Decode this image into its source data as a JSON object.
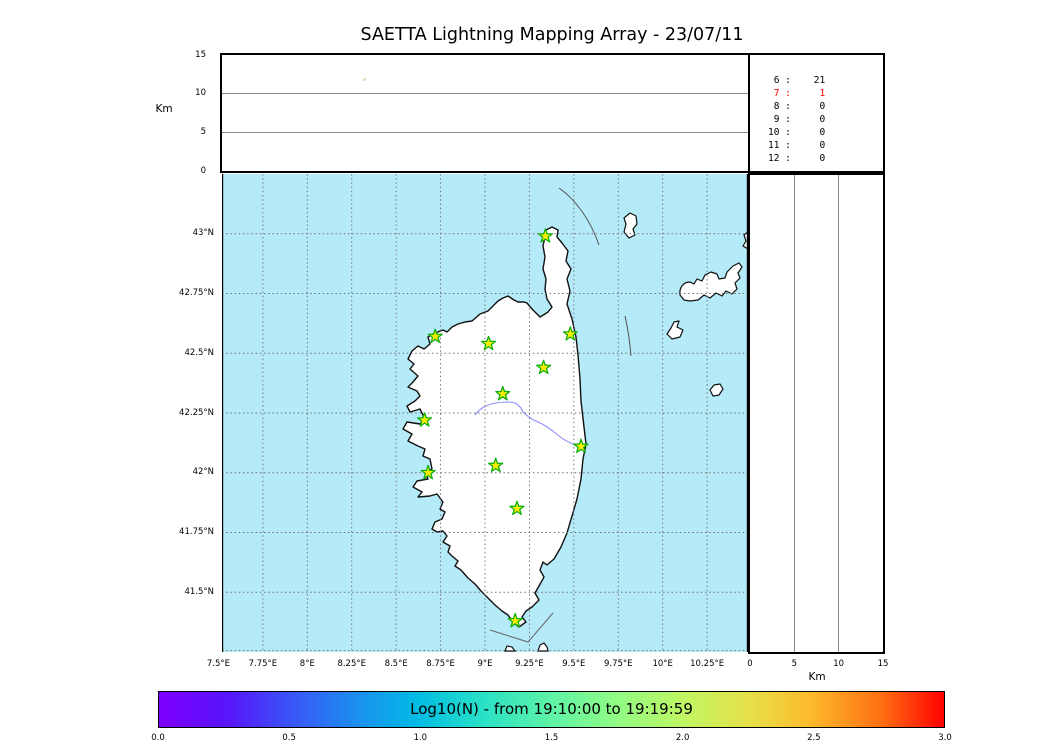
{
  "chart_data": {
    "type": "map",
    "title": "SAETTA Lightning Mapping Array - 23/07/11",
    "map_panel": {
      "lon_range": [
        7.52,
        10.48
      ],
      "lat_range": [
        41.25,
        43.25
      ],
      "sea_color": "#b5eaf8",
      "land_color": "#ffffff",
      "grid": "dashed",
      "lon_ticks": [
        {
          "value": 7.5,
          "label": "7.5°E"
        },
        {
          "value": 7.75,
          "label": "7.75°E"
        },
        {
          "value": 8.0,
          "label": "8°E"
        },
        {
          "value": 8.25,
          "label": "8.25°E"
        },
        {
          "value": 8.5,
          "label": "8.5°E"
        },
        {
          "value": 8.75,
          "label": "8.75°E"
        },
        {
          "value": 9.0,
          "label": "9°E"
        },
        {
          "value": 9.25,
          "label": "9.25°E"
        },
        {
          "value": 9.5,
          "label": "9.5°E"
        },
        {
          "value": 9.75,
          "label": "9.75°E"
        },
        {
          "value": 10.0,
          "label": "10°E"
        },
        {
          "value": 10.25,
          "label": "10.25°E"
        }
      ],
      "lat_ticks": [
        {
          "value": 43.0,
          "label": "43°N"
        },
        {
          "value": 42.75,
          "label": "42.75°N"
        },
        {
          "value": 42.5,
          "label": "42.5°N"
        },
        {
          "value": 42.25,
          "label": "42.25°N"
        },
        {
          "value": 42.0,
          "label": "42°N"
        },
        {
          "value": 41.75,
          "label": "41.75°N"
        },
        {
          "value": 41.5,
          "label": "41.5°N"
        },
        {
          "value": 41.25,
          "label": ""
        }
      ],
      "station_marker": {
        "shape": "star",
        "fill": "#ffee00",
        "stroke": "#0fb00f"
      },
      "stations": [
        {
          "lon": 9.34,
          "lat": 42.99
        },
        {
          "lon": 8.72,
          "lat": 42.57
        },
        {
          "lon": 9.02,
          "lat": 42.54
        },
        {
          "lon": 9.48,
          "lat": 42.58
        },
        {
          "lon": 9.33,
          "lat": 42.44
        },
        {
          "lon": 9.1,
          "lat": 42.33
        },
        {
          "lon": 8.66,
          "lat": 42.22
        },
        {
          "lon": 9.54,
          "lat": 42.11
        },
        {
          "lon": 8.68,
          "lat": 42.0
        },
        {
          "lon": 9.06,
          "lat": 42.03
        },
        {
          "lon": 9.18,
          "lat": 41.85
        },
        {
          "lon": 9.17,
          "lat": 41.38
        }
      ]
    },
    "altitude_panel": {
      "ylabel": "Km",
      "ylim": [
        0,
        15
      ],
      "yticks": [
        0,
        5,
        10,
        15
      ],
      "points": [
        {
          "lon": 8.32,
          "alt_km": 11.8,
          "color": "#dcdcb4"
        }
      ]
    },
    "latitude_altitude_panel": {
      "xlabel": "Km",
      "xlim": [
        0,
        15
      ],
      "xticks": [
        0,
        5,
        10,
        15
      ],
      "points": []
    },
    "station_count_table": {
      "rows": [
        {
          "stations": "6",
          "count": "21",
          "color": "#000000"
        },
        {
          "stations": "7",
          "count": "1",
          "color": "#ff0000"
        },
        {
          "stations": "8",
          "count": "0",
          "color": "#000000"
        },
        {
          "stations": "9",
          "count": "0",
          "color": "#000000"
        },
        {
          "stations": "10",
          "count": "0",
          "color": "#000000"
        },
        {
          "stations": "11",
          "count": "0",
          "color": "#000000"
        },
        {
          "stations": "12",
          "count": "0",
          "color": "#000000"
        }
      ]
    },
    "colorbar": {
      "label": "Log10(N) - from 19:10:00 to 19:19:59",
      "range": [
        0.0,
        3.0
      ],
      "ticks": [
        "0.0",
        "0.5",
        "1.0",
        "1.5",
        "2.0",
        "2.5",
        "3.0"
      ],
      "gradient": [
        {
          "pos": 0,
          "color": "#7f00ff"
        },
        {
          "pos": 9,
          "color": "#5716fb"
        },
        {
          "pos": 17,
          "color": "#3956f7"
        },
        {
          "pos": 25,
          "color": "#1c8df0"
        },
        {
          "pos": 33,
          "color": "#02bce4"
        },
        {
          "pos": 41,
          "color": "#28e0c8"
        },
        {
          "pos": 50,
          "color": "#5ef3a6"
        },
        {
          "pos": 58,
          "color": "#8ffb85"
        },
        {
          "pos": 67,
          "color": "#c0f662"
        },
        {
          "pos": 75,
          "color": "#e6e14a"
        },
        {
          "pos": 83,
          "color": "#fcba2c"
        },
        {
          "pos": 92,
          "color": "#ff6f12"
        },
        {
          "pos": 100,
          "color": "#ff0000"
        }
      ]
    }
  }
}
